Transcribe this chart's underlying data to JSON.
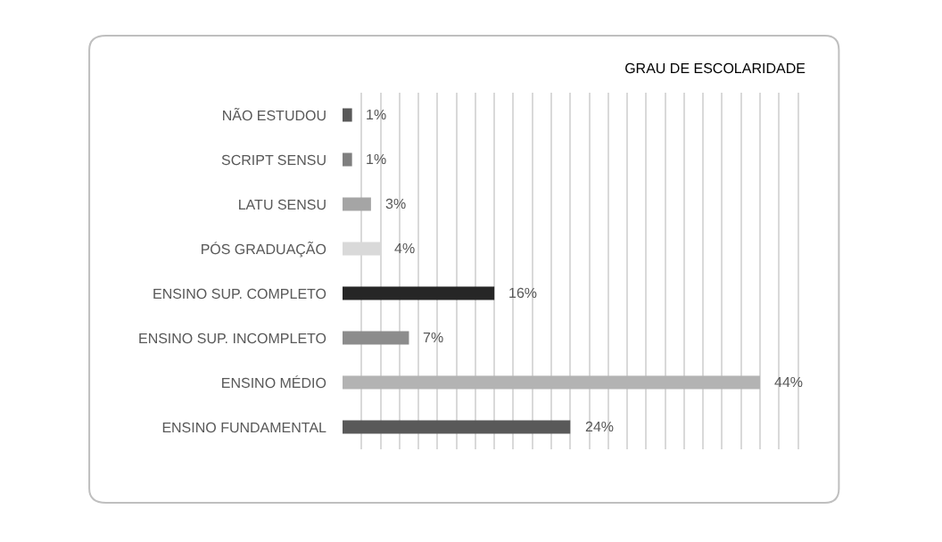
{
  "chart_data": {
    "type": "bar",
    "orientation": "horizontal",
    "title": "GRAU DE ESCOLARIDADE",
    "categories": [
      "NÃO ESTUDOU",
      "SCRIPT SENSU",
      "LATU SENSU",
      "PÓS GRADUAÇÃO",
      "ENSINO SUP. COMPLETO",
      "ENSINO SUP. INCOMPLETO",
      "ENSINO MÉDIO",
      "ENSINO FUNDAMENTAL"
    ],
    "values": [
      1,
      1,
      3,
      4,
      16,
      7,
      44,
      24
    ],
    "colors": [
      "#595959",
      "#7f7f7f",
      "#a5a5a5",
      "#d9d9d9",
      "#262626",
      "#8c8c8c",
      "#b3b3b3",
      "#595959"
    ],
    "value_labels": [
      "1%",
      "1%",
      "3%",
      "4%",
      "16%",
      "7%",
      "44%",
      "24%"
    ],
    "grid": "x",
    "tick_labels": "y",
    "legend": false
  }
}
